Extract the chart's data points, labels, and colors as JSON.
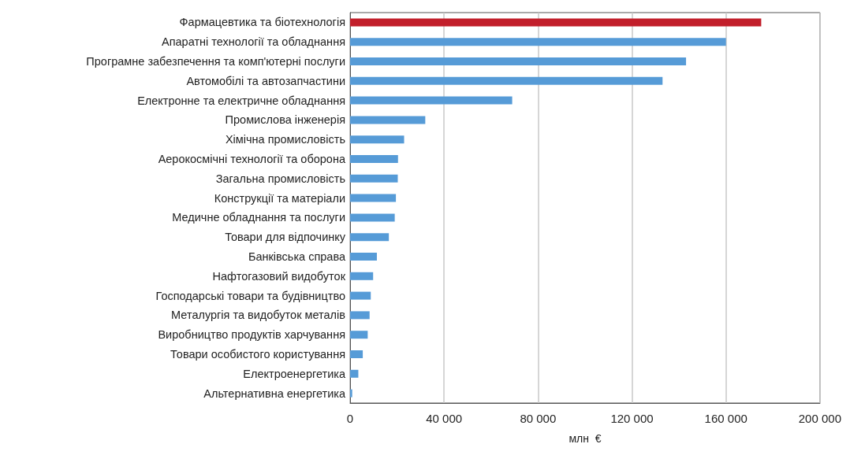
{
  "chart_data": {
    "type": "bar",
    "orientation": "horizontal",
    "xlabel": "млн  €",
    "categories": [
      "Фармацевтика та біотехнологія",
      "Апаратні технології та обладнання",
      "Програмне забезпечення та комп'ютерні послуги",
      "Автомобілі та автозапчастини",
      "Електронне та електричне обладнання",
      "Промислова інженерія",
      "Хімічна промисловість",
      "Аерокосмічні технології та оборона",
      "Загальна промисловість",
      "Конструкції та матеріали",
      "Медичне обладнання та послуги",
      "Товари для відпочинку",
      "Банківська справа",
      "Нафтогазовий видобуток",
      "Господарські товари та будівництво",
      "Металургія та видобуток металів",
      "Виробництво продуктів харчування",
      "Товари особистого користування",
      "Електроенергетика",
      "Альтернативна енергетика"
    ],
    "values": [
      175000,
      160000,
      143000,
      133000,
      69000,
      32000,
      23000,
      20400,
      20300,
      19500,
      19000,
      16500,
      11400,
      9800,
      8800,
      8300,
      7500,
      5400,
      3500,
      900
    ],
    "colors": [
      "#c21f2b",
      "#569bd7",
      "#569bd7",
      "#569bd7",
      "#569bd7",
      "#569bd7",
      "#569bd7",
      "#569bd7",
      "#569bd7",
      "#569bd7",
      "#569bd7",
      "#569bd7",
      "#569bd7",
      "#569bd7",
      "#569bd7",
      "#569bd7",
      "#569bd7",
      "#569bd7",
      "#569bd7",
      "#569bd7"
    ],
    "xlim": [
      0,
      200000
    ],
    "xticks": [
      0,
      {
        "value": 40000,
        "label": "40 000"
      },
      {
        "value": 80000,
        "label": "80 000"
      },
      {
        "value": 120000,
        "label": "120 000"
      },
      {
        "value": 160000,
        "label": "160 000"
      },
      {
        "value": 200000,
        "label": "200 000"
      }
    ],
    "grid": "x"
  }
}
